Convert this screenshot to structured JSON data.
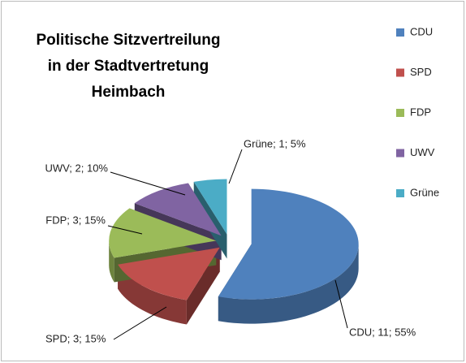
{
  "chart_data": {
    "type": "pie",
    "title": [
      "Politische Sitzvertreilung",
      "in der Stadtvertretung",
      "Heimbach"
    ],
    "categories": [
      "CDU",
      "SPD",
      "FDP",
      "UWV",
      "Grüne"
    ],
    "values": [
      11,
      3,
      3,
      2,
      1
    ],
    "value_labels": [
      "CDU; 11; 55%",
      "SPD; 3; 15%",
      "FDP; 3; 15%",
      "UWV; 2; 10%",
      "Grüne; 1; 5%"
    ],
    "colors": [
      "#4f81bd",
      "#c0504d",
      "#9bbb59",
      "#8064a2",
      "#4bacc6"
    ],
    "legend": "right",
    "exploded": true,
    "3d": true
  }
}
